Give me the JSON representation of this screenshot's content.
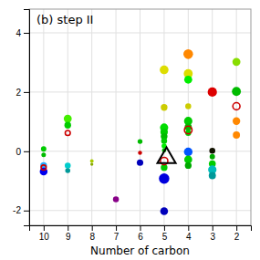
{
  "chart_data": {
    "type": "scatter",
    "title": "(b) step II",
    "xlabel": "Number of carbon",
    "xlim": [
      10.6,
      1.4
    ],
    "ylim": [
      -2.5,
      4.8
    ],
    "xticks": [
      2,
      3,
      4,
      5,
      6,
      7,
      8,
      9,
      10
    ],
    "yticks": [
      -2,
      0,
      2,
      4
    ],
    "grid": true,
    "series": [
      {
        "marker": "circle",
        "x": [
          10,
          10,
          10,
          10,
          9,
          9,
          9,
          9,
          8,
          8,
          7,
          6,
          6,
          6,
          5,
          5,
          5,
          5,
          5,
          5,
          5,
          5,
          5,
          5,
          5,
          4,
          4,
          4,
          4,
          4,
          4,
          4,
          4,
          4,
          4,
          3,
          3,
          3,
          3,
          3,
          3,
          2,
          2,
          2,
          2
        ],
        "values": [
          0.08,
          -0.12,
          -0.48,
          -0.68,
          1.1,
          0.88,
          -0.48,
          -0.65,
          -0.33,
          -0.44,
          -1.62,
          0.33,
          -0.38,
          -0.05,
          2.75,
          1.48,
          0.8,
          0.65,
          0.5,
          0.35,
          0.18,
          0.03,
          -0.55,
          -0.92,
          -2.02,
          3.28,
          2.62,
          2.42,
          1.52,
          1.02,
          0.82,
          0.62,
          -0.02,
          -0.28,
          -0.48,
          2.0,
          0.02,
          -0.18,
          -0.42,
          -0.62,
          -0.82,
          3.02,
          2.02,
          1.02,
          0.55
        ],
        "sizes": [
          18,
          13,
          28,
          38,
          40,
          28,
          22,
          16,
          8,
          6,
          22,
          15,
          26,
          10,
          48,
          28,
          42,
          34,
          28,
          22,
          16,
          12,
          28,
          68,
          38,
          58,
          50,
          40,
          22,
          44,
          32,
          22,
          46,
          40,
          28,
          54,
          22,
          18,
          30,
          44,
          32,
          40,
          50,
          36,
          32
        ],
        "colors": [
          "#00cc00",
          "#00bb00",
          "#22aaff",
          "#0000ee",
          "#44ee00",
          "#00cc00",
          "#00cccc",
          "#009999",
          "#aacc00",
          "#88aa00",
          "#880088",
          "#00bb00",
          "#0000bb",
          "#cc0000",
          "#dddd00",
          "#cccc00",
          "#00dd00",
          "#00cc00",
          "#00bb00",
          "#00cc00",
          "#00ee00",
          "#00bb00",
          "#00cc00",
          "#0000dd",
          "#0000bb",
          "#ff8800",
          "#dddd00",
          "#00ee00",
          "#cccc00",
          "#00cc00",
          "#00bb00",
          "#00cc00",
          "#0055ff",
          "#00cc00",
          "#00aa00",
          "#dd0000",
          "#111100",
          "#00aa00",
          "#00cc00",
          "#00bbbb",
          "#009999",
          "#88dd00",
          "#00bb00",
          "#ff8800",
          "#ff8800"
        ]
      },
      {
        "marker": "circle-open",
        "x": [
          10,
          9,
          5,
          4,
          2
        ],
        "values": [
          -0.55,
          0.62,
          -0.33,
          0.72,
          1.52
        ],
        "sizes": [
          16,
          16,
          34,
          36,
          32
        ],
        "color": "#cc0000"
      },
      {
        "marker": "triangle-open",
        "x": [
          4.9
        ],
        "values": [
          -0.22
        ],
        "sizes": [
          90
        ],
        "color": "#000000"
      }
    ]
  }
}
